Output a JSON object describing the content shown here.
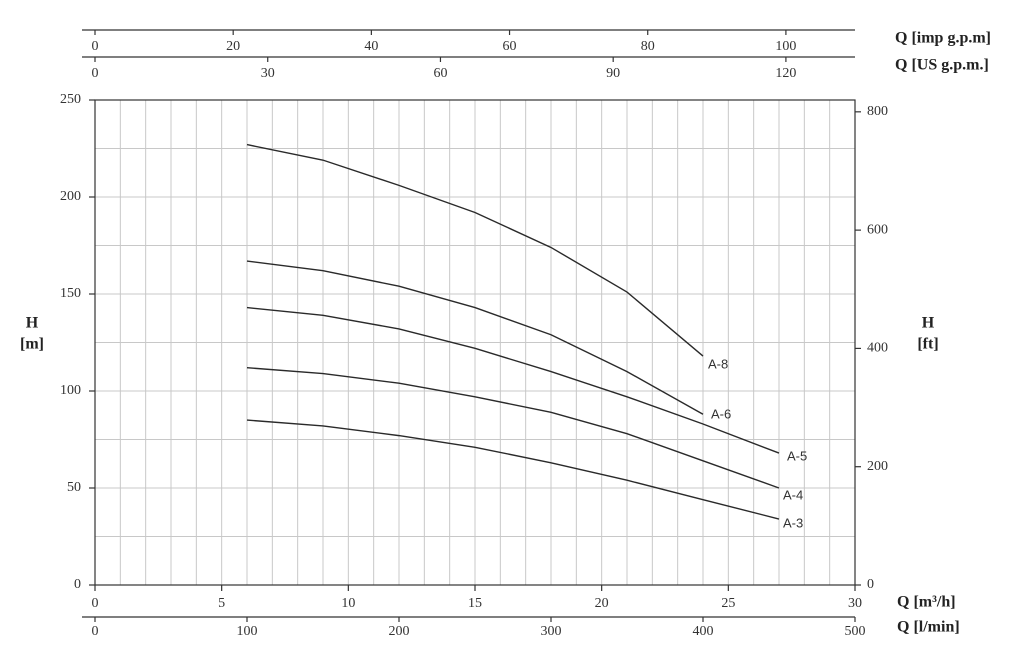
{
  "chart_data": {
    "type": "line",
    "xlabel": "Q [m³/h]",
    "ylabel": [
      "H",
      "[m]"
    ],
    "xlim": [
      0,
      30
    ],
    "xticks": [
      0,
      5,
      10,
      15,
      20,
      25,
      30
    ],
    "xminorticks": [
      0,
      1,
      2,
      3,
      4,
      5,
      6,
      7,
      8,
      9,
      10,
      11,
      12,
      13,
      14,
      15,
      16,
      17,
      18,
      19,
      20,
      21,
      22,
      23,
      24,
      25,
      26,
      27,
      28,
      29,
      30
    ],
    "ylim": [
      0,
      250
    ],
    "yticks": [
      0,
      50,
      100,
      150,
      200,
      250
    ],
    "yminorticks": [
      0,
      25,
      50,
      75,
      100,
      125,
      150,
      175,
      200,
      225,
      250
    ],
    "grid": true,
    "color": "#2a2a2a",
    "top_axes": [
      {
        "label": "Q [imp g.p.m]",
        "lim": [
          0,
          110
        ],
        "ticks": [
          0,
          20,
          40,
          60,
          80,
          100
        ]
      },
      {
        "label": "Q [US g.p.m.]",
        "lim": [
          0,
          132
        ],
        "ticks": [
          0,
          30,
          60,
          90,
          120
        ]
      }
    ],
    "bottom_axis2": {
      "label": "Q [l/min]",
      "lim": [
        0,
        500
      ],
      "ticks": [
        0,
        100,
        200,
        300,
        400,
        500
      ]
    },
    "y2label": [
      "H",
      "[ft]"
    ],
    "y2lim": [
      0,
      820
    ],
    "y2ticks": [
      0,
      200,
      400,
      600,
      800
    ],
    "series": [
      {
        "name": "A-8",
        "x": [
          6,
          9,
          12,
          15,
          18,
          21,
          24
        ],
        "values": [
          227,
          219,
          206,
          192,
          174,
          151,
          118
        ]
      },
      {
        "name": "A-6",
        "x": [
          6,
          9,
          12,
          15,
          18,
          21,
          24
        ],
        "values": [
          167,
          162,
          154,
          143,
          129,
          110,
          88
        ]
      },
      {
        "name": "A-5",
        "x": [
          6,
          9,
          12,
          15,
          18,
          21,
          24,
          27
        ],
        "values": [
          143,
          139,
          132,
          122,
          110,
          97,
          83,
          68
        ]
      },
      {
        "name": "A-4",
        "x": [
          6,
          9,
          12,
          15,
          18,
          21,
          24,
          27
        ],
        "values": [
          112,
          109,
          104,
          97,
          89,
          78,
          64,
          50
        ]
      },
      {
        "name": "A-3",
        "x": [
          6,
          9,
          12,
          15,
          18,
          21,
          24,
          27
        ],
        "values": [
          85,
          82,
          77,
          71,
          63,
          54,
          44,
          34
        ]
      }
    ]
  }
}
